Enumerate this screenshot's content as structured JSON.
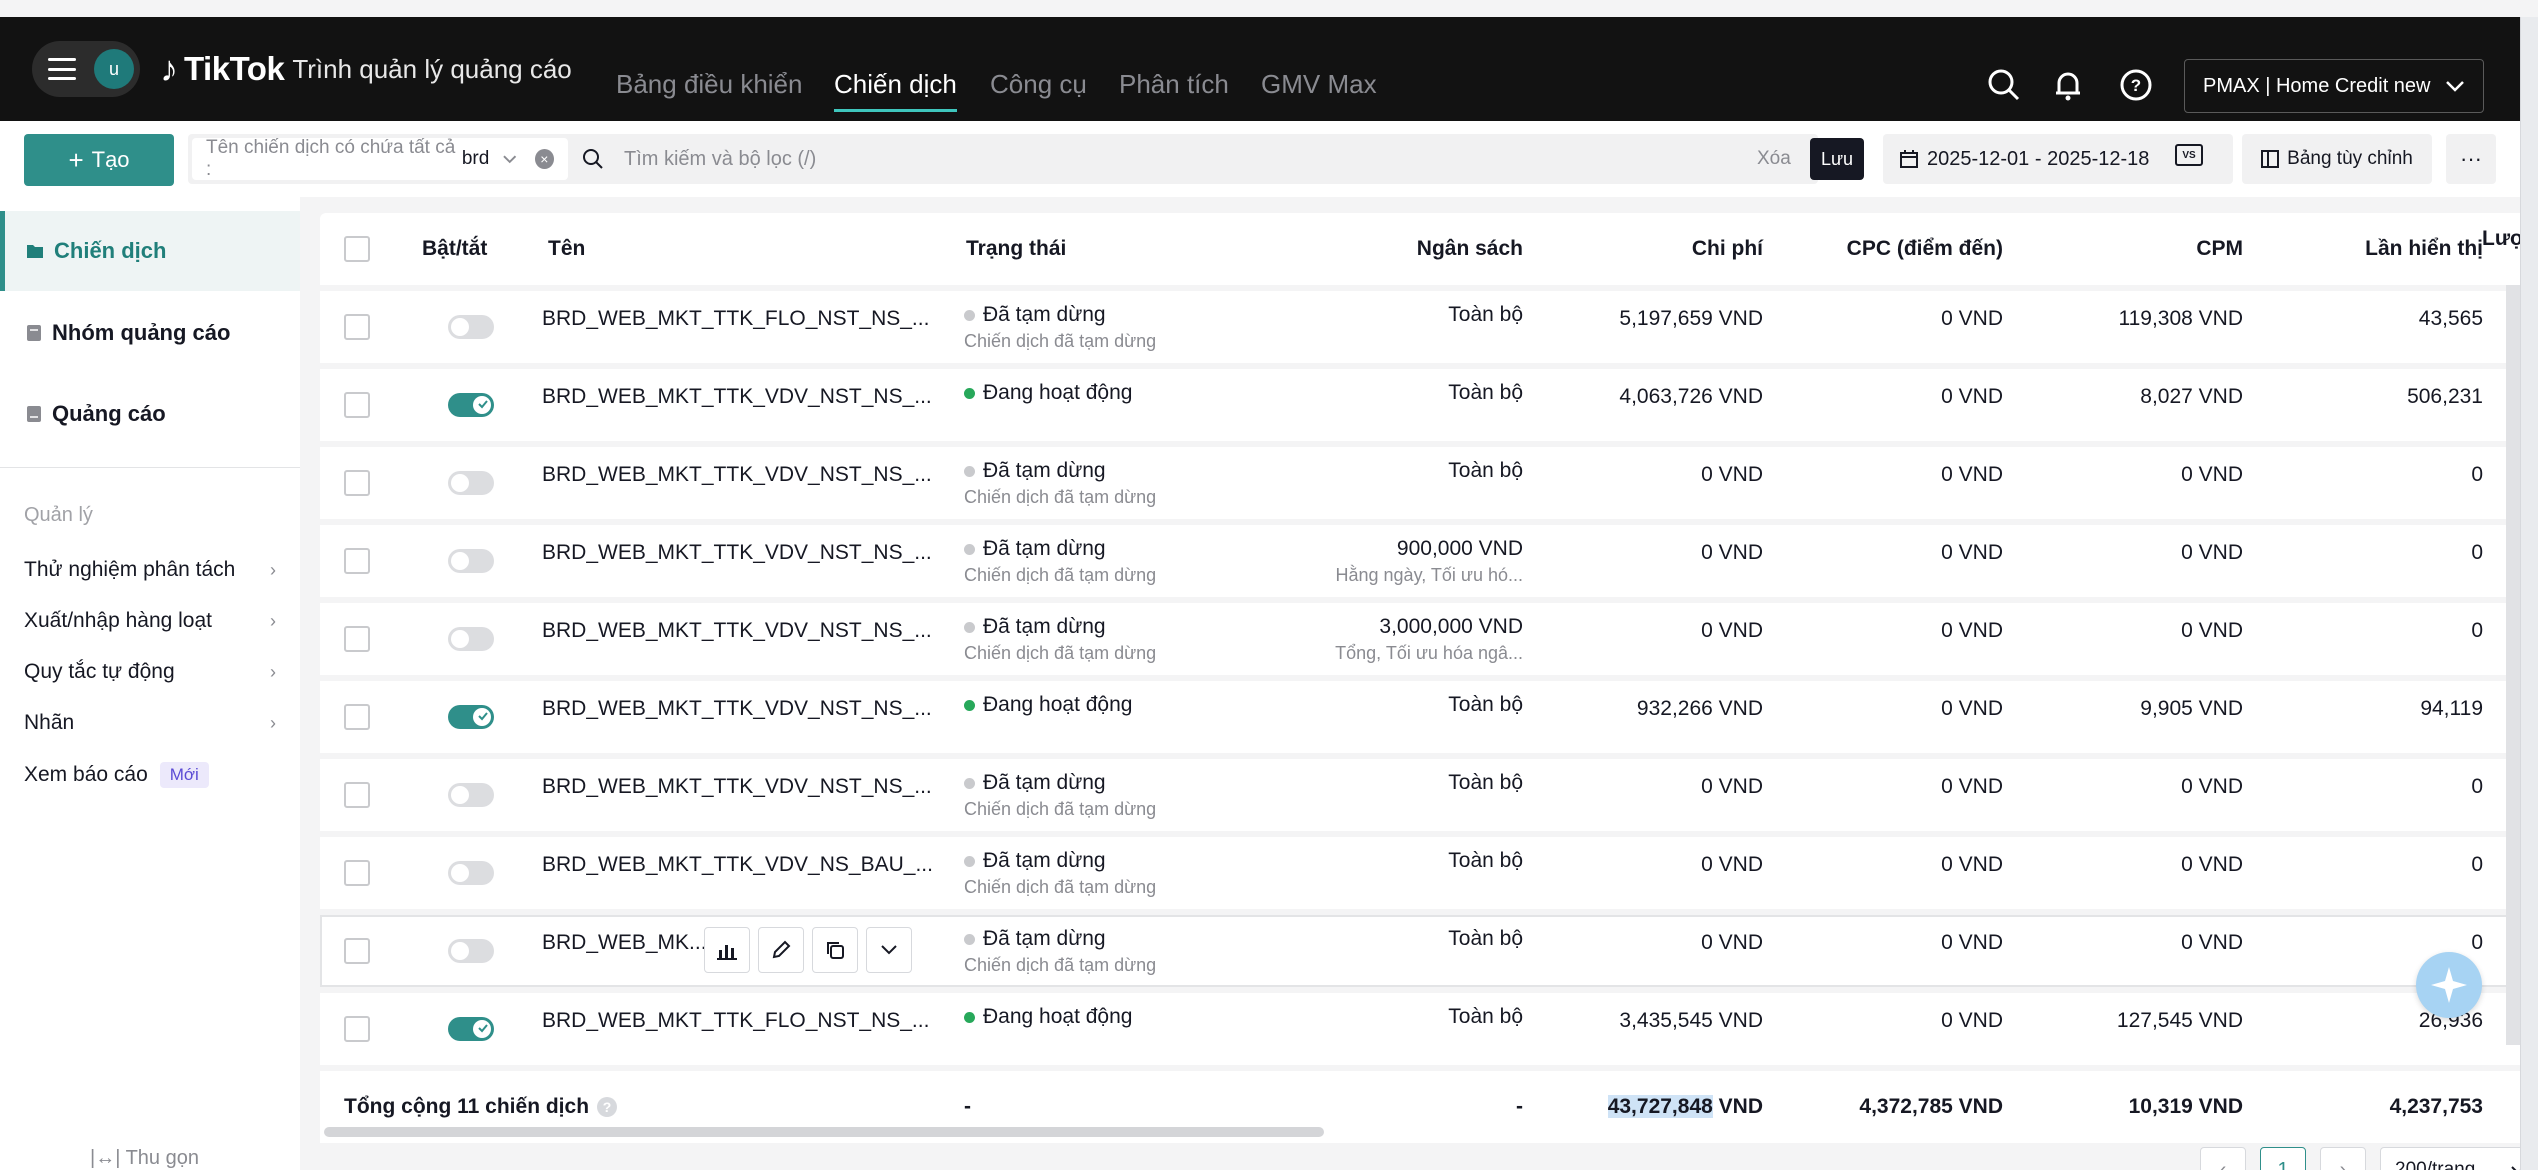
{
  "header": {
    "avatar_initial": "u",
    "brand": "TikTok",
    "subtitle": "Trình quản lý quảng cáo",
    "nav": [
      "Bảng điều khiển",
      "Chiến dịch",
      "Công cụ",
      "Phân tích",
      "GMV Max"
    ],
    "account": "PMAX | Home Credit new"
  },
  "toolbar": {
    "create_label": "Tạo",
    "filter_prefix": "Tên chiến dịch có chứa tất cả :",
    "filter_value": "brd",
    "search_placeholder": "Tìm kiếm và bộ lọc (/)",
    "clear_label": "Xóa",
    "save_label": "Lưu",
    "date_range": "2025-12-01 - 2025-12-18",
    "compare_badge": "VS",
    "custom_table_label": "Bảng tùy chỉnh",
    "more_label": "···"
  },
  "sidebar": {
    "items": [
      "Chiến dịch",
      "Nhóm quảng cáo",
      "Quảng cáo"
    ],
    "section_title": "Quản lý",
    "sub_items": [
      "Thử nghiệm phân tách",
      "Xuất/nhập hàng loạt",
      "Quy tắc tự động",
      "Nhãn"
    ],
    "report_label": "Xem báo cáo",
    "new_badge": "Mới",
    "collapse_label": "Thu gọn"
  },
  "table": {
    "headers": [
      "Bật/tắt",
      "Tên",
      "Trạng thái",
      "Ngân sách",
      "Chi phí",
      "CPC (điểm đến)",
      "CPM",
      "Lần hiển thị",
      "Lượ"
    ],
    "rows": [
      {
        "on": false,
        "name": "BRD_WEB_MKT_TTK_FLO_NST_NS_...",
        "status": "Đã tạm dừng",
        "status_sub": "Chiến dịch đã tạm dừng",
        "budget": "Toàn bộ",
        "budget_sub": "",
        "cost": "5,197,659 VND",
        "cpc": "0 VND",
        "cpm": "119,308 VND",
        "impr": "43,565"
      },
      {
        "on": true,
        "name": "BRD_WEB_MKT_TTK_VDV_NST_NS_...",
        "status": "Đang hoạt động",
        "status_sub": "",
        "budget": "Toàn bộ",
        "budget_sub": "",
        "cost": "4,063,726 VND",
        "cpc": "0 VND",
        "cpm": "8,027 VND",
        "impr": "506,231"
      },
      {
        "on": false,
        "name": "BRD_WEB_MKT_TTK_VDV_NST_NS_...",
        "status": "Đã tạm dừng",
        "status_sub": "Chiến dịch đã tạm dừng",
        "budget": "Toàn bộ",
        "budget_sub": "",
        "cost": "0 VND",
        "cpc": "0 VND",
        "cpm": "0 VND",
        "impr": "0"
      },
      {
        "on": false,
        "name": "BRD_WEB_MKT_TTK_VDV_NST_NS_...",
        "status": "Đã tạm dừng",
        "status_sub": "Chiến dịch đã tạm dừng",
        "budget": "900,000 VND",
        "budget_sub": "Hằng ngày, Tối ưu hó...",
        "cost": "0 VND",
        "cpc": "0 VND",
        "cpm": "0 VND",
        "impr": "0"
      },
      {
        "on": false,
        "name": "BRD_WEB_MKT_TTK_VDV_NST_NS_...",
        "status": "Đã tạm dừng",
        "status_sub": "Chiến dịch đã tạm dừng",
        "budget": "3,000,000 VND",
        "budget_sub": "Tổng, Tối ưu hóa ngâ...",
        "cost": "0 VND",
        "cpc": "0 VND",
        "cpm": "0 VND",
        "impr": "0"
      },
      {
        "on": true,
        "name": "BRD_WEB_MKT_TTK_VDV_NST_NS_...",
        "status": "Đang hoạt động",
        "status_sub": "",
        "budget": "Toàn bộ",
        "budget_sub": "",
        "cost": "932,266 VND",
        "cpc": "0 VND",
        "cpm": "9,905 VND",
        "impr": "94,119"
      },
      {
        "on": false,
        "name": "BRD_WEB_MKT_TTK_VDV_NST_NS_...",
        "status": "Đã tạm dừng",
        "status_sub": "Chiến dịch đã tạm dừng",
        "budget": "Toàn bộ",
        "budget_sub": "",
        "cost": "0 VND",
        "cpc": "0 VND",
        "cpm": "0 VND",
        "impr": "0"
      },
      {
        "on": false,
        "name": "BRD_WEB_MKT_TTK_VDV_NS_BAU_...",
        "status": "Đã tạm dừng",
        "status_sub": "Chiến dịch đã tạm dừng",
        "budget": "Toàn bộ",
        "budget_sub": "",
        "cost": "0 VND",
        "cpc": "0 VND",
        "cpm": "0 VND",
        "impr": "0"
      },
      {
        "on": false,
        "name": "BRD_WEB_MK...",
        "status": "Đã tạm dừng",
        "status_sub": "Chiến dịch đã tạm dừng",
        "budget": "Toàn bộ",
        "budget_sub": "",
        "cost": "0 VND",
        "cpc": "0 VND",
        "cpm": "0 VND",
        "impr": "0",
        "hover": true
      },
      {
        "on": true,
        "name": "BRD_WEB_MKT_TTK_FLO_NST_NS_...",
        "status": "Đang hoạt động",
        "status_sub": "",
        "budget": "Toàn bộ",
        "budget_sub": "",
        "cost": "3,435,545 VND",
        "cpc": "0 VND",
        "cpm": "127,545 VND",
        "impr": "26,936"
      }
    ],
    "total": {
      "label": "Tổng cộng 11 chiến dịch",
      "status": "-",
      "budget": "-",
      "cost_highlight": "43,727,848",
      "cost_unit": "VND",
      "cpc": "4,372,785 VND",
      "cpm": "10,319 VND",
      "impr": "4,237,753"
    }
  },
  "pagination": {
    "page": "1",
    "page_size": "200/trang"
  },
  "colors": {
    "accent": "#2f8f8a",
    "active_dot": "#27a85a",
    "paused_dot": "#c9cacd",
    "topbar": "#121212"
  }
}
